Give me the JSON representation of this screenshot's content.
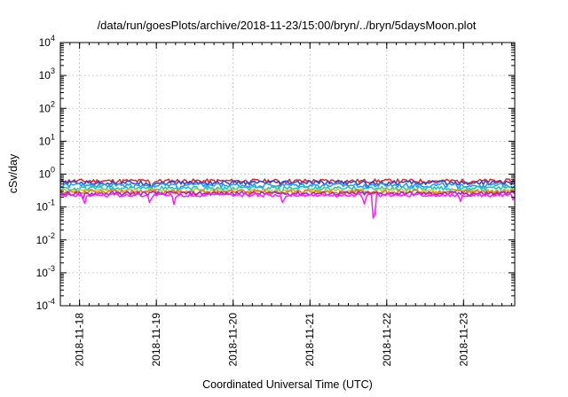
{
  "chart_data": {
    "type": "line",
    "title": "/data/run/goesPlots/archive/2018-11-23/15:00/bryn/../bryn/5daysMoon.plot",
    "xlabel": "Coordinated Universal Time (UTC)",
    "ylabel": "cSv/day",
    "yscale": "log",
    "ylim": [
      0.0001,
      10000
    ],
    "xlim": [
      "2018-11-17T18:00",
      "2018-11-23T16:00"
    ],
    "grid": true,
    "x_ticks": [
      "2018-11-18",
      "2018-11-19",
      "2018-11-20",
      "2018-11-21",
      "2018-11-22",
      "2018-11-23"
    ],
    "y_ticks": [
      {
        "value": 0.0001,
        "base": "10",
        "exp": "-4"
      },
      {
        "value": 0.001,
        "base": "10",
        "exp": "-3"
      },
      {
        "value": 0.01,
        "base": "10",
        "exp": "-2"
      },
      {
        "value": 0.1,
        "base": "10",
        "exp": "-1"
      },
      {
        "value": 1,
        "base": "10",
        "exp": "0"
      },
      {
        "value": 10,
        "base": "10",
        "exp": "1"
      },
      {
        "value": 100,
        "base": "10",
        "exp": "2"
      },
      {
        "value": 1000,
        "base": "10",
        "exp": "3"
      },
      {
        "value": 10000,
        "base": "10",
        "exp": "4"
      }
    ],
    "series": [
      {
        "color": "#e8202a",
        "base": 0.62,
        "amp": 0.1,
        "dips": [
          {
            "x": "2018-11-18T22:30",
            "y": 0.35
          },
          {
            "x": "2018-11-20T15:00",
            "y": 0.4
          }
        ]
      },
      {
        "color": "#3344cc",
        "base": 0.55,
        "amp": 0.09,
        "dips": [
          {
            "x": "2018-11-18T22:30",
            "y": 0.3
          },
          {
            "x": "2018-11-21T18:00",
            "y": 0.36
          }
        ]
      },
      {
        "color": "#1a9aff",
        "base": 0.46,
        "amp": 0.08,
        "dips": [
          {
            "x": "2018-11-19T07:00",
            "y": 0.3
          },
          {
            "x": "2018-11-22T22:30",
            "y": 0.31
          }
        ]
      },
      {
        "color": "#18c8b0",
        "base": 0.37,
        "amp": 0.06,
        "dips": [
          {
            "x": "2018-11-20T15:00",
            "y": 0.24
          }
        ]
      },
      {
        "color": "#ccc61a",
        "base": 0.32,
        "amp": 0.05,
        "dips": [
          {
            "x": "2018-11-21T18:00",
            "y": 0.22
          }
        ]
      },
      {
        "color": "#f07030",
        "base": 0.29,
        "amp": 0.05,
        "dips": [
          {
            "x": "2018-11-23T14:00",
            "y": 0.2
          }
        ]
      },
      {
        "color": "#aa1ccc",
        "base": 0.26,
        "amp": 0.04,
        "dips": [
          {
            "x": "2018-11-18T01:00",
            "y": 0.16
          }
        ]
      },
      {
        "color": "#ff1aff",
        "base": 0.23,
        "amp": 0.03,
        "dips": [
          {
            "x": "2018-11-18T01:30",
            "y": 0.11
          },
          {
            "x": "2018-11-18T22:00",
            "y": 0.12
          },
          {
            "x": "2018-11-19T05:30",
            "y": 0.12
          },
          {
            "x": "2018-11-20T15:30",
            "y": 0.12
          },
          {
            "x": "2018-11-21T17:00",
            "y": 0.12
          },
          {
            "x": "2018-11-21T20:00",
            "y": 0.02
          },
          {
            "x": "2018-11-22T23:00",
            "y": 0.14
          },
          {
            "x": "2018-11-23T15:30",
            "y": 0.16
          }
        ]
      }
    ]
  }
}
